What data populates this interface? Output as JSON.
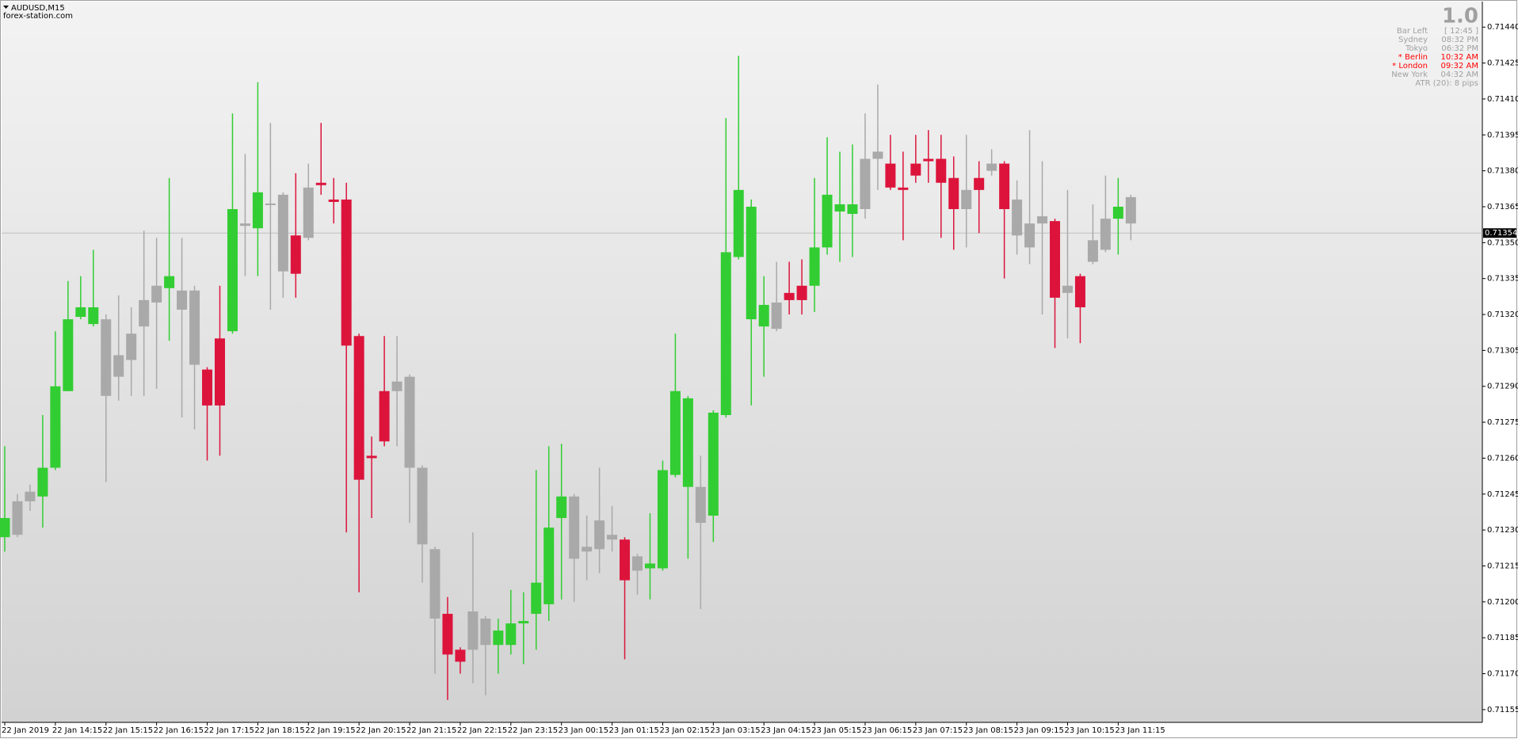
{
  "chart_data": {
    "type": "candlestick",
    "title": "AUDUSD,M15",
    "subtitle": "forex-station.com",
    "ylim": [
      0.7115,
      0.7145
    ],
    "yticks": [
      {
        "value": 0.7144,
        "label": "0.71440"
      },
      0.71425,
      {
        "value": 0.7141,
        "label": "0.71410"
      },
      0.71395,
      {
        "value": 0.7138,
        "label": "0.71380"
      },
      0.71365,
      {
        "value": 0.7135,
        "label": "0.71350"
      },
      0.71335,
      {
        "value": 0.7132,
        "label": "0.71320"
      },
      0.71305,
      {
        "value": 0.7129,
        "label": "0.71290"
      },
      0.71275,
      {
        "value": 0.7126,
        "label": "0.71260"
      },
      0.71245,
      {
        "value": 0.7123,
        "label": "0.71230"
      },
      0.71215,
      {
        "value": 0.712,
        "label": "0.71200"
      },
      0.71185,
      {
        "value": 0.7117,
        "label": "0.71170"
      },
      0.71155
    ],
    "grid": false,
    "price_line": 0.71354,
    "price_line_color": "#c0c0c0",
    "categories": [
      "22 Jan 2019",
      null,
      null,
      null,
      "22 Jan 14:15",
      null,
      null,
      null,
      "22 Jan 15:15",
      null,
      null,
      null,
      "22 Jan 16:15",
      null,
      null,
      null,
      "22 Jan 17:15",
      null,
      null,
      null,
      "22 Jan 18:15",
      null,
      null,
      null,
      "22 Jan 19:15",
      null,
      null,
      null,
      "22 Jan 20:15",
      null,
      null,
      null,
      "22 Jan 21:15",
      null,
      null,
      null,
      "22 Jan 22:15",
      null,
      null,
      null,
      "22 Jan 23:15",
      null,
      null,
      null,
      "23 Jan 00:15",
      null,
      null,
      null,
      "23 Jan 01:15",
      null,
      null,
      null,
      "23 Jan 02:15",
      null,
      null,
      null,
      "23 Jan 03:15",
      null,
      null,
      null,
      "23 Jan 04:15",
      null,
      null,
      null,
      "23 Jan 05:15",
      null,
      null,
      null,
      "23 Jan 06:15",
      null,
      null,
      null,
      "23 Jan 07:15",
      null,
      null,
      null,
      "23 Jan 08:15",
      null,
      null,
      null,
      "23 Jan 09:15",
      null,
      null,
      null,
      "23 Jan 10:15",
      null,
      null,
      null,
      "23 Jan 11:15",
      null
    ],
    "ohlc": [
      [
        0.71227,
        0.71265,
        0.71221,
        0.71235
      ],
      [
        0.71228,
        0.71245,
        0.71227,
        0.71242
      ],
      [
        0.71242,
        0.71249,
        0.71238,
        0.71246
      ],
      [
        0.71244,
        0.71278,
        0.71231,
        0.71256
      ],
      [
        0.71256,
        0.71313,
        0.71255,
        0.7129
      ],
      [
        0.71288,
        0.71334,
        0.71288,
        0.71318
      ],
      [
        0.71319,
        0.71336,
        0.71318,
        0.71323
      ],
      [
        0.71316,
        0.71347,
        0.71315,
        0.71323
      ],
      [
        0.71318,
        0.7132,
        0.7125,
        0.71286
      ],
      [
        0.71294,
        0.71328,
        0.71284,
        0.71303
      ],
      [
        0.71301,
        0.71323,
        0.71286,
        0.71312
      ],
      [
        0.71315,
        0.71355,
        0.71286,
        0.71326
      ],
      [
        0.71325,
        0.71352,
        0.71289,
        0.71332
      ],
      [
        0.71331,
        0.71377,
        0.71309,
        0.71336
      ],
      [
        0.7133,
        0.71352,
        0.71277,
        0.71322
      ],
      [
        0.7133,
        0.71332,
        0.71272,
        0.71299
      ],
      [
        0.71297,
        0.71298,
        0.71259,
        0.71282
      ],
      [
        0.7131,
        0.71332,
        0.71261,
        0.71282
      ],
      [
        0.71313,
        0.71404,
        0.71312,
        0.71364
      ],
      [
        0.71357,
        0.71387,
        0.71336,
        0.71358
      ],
      [
        0.71356,
        0.71417,
        0.71336,
        0.71371
      ],
      [
        0.71366,
        0.714,
        0.71322,
        0.71366
      ],
      [
        0.7137,
        0.71371,
        0.71327,
        0.71338
      ],
      [
        0.71353,
        0.71379,
        0.71327,
        0.71337
      ],
      [
        0.71352,
        0.71383,
        0.71351,
        0.71373
      ],
      [
        0.71375,
        0.714,
        0.7137,
        0.71374
      ],
      [
        0.71368,
        0.71377,
        0.71358,
        0.71367
      ],
      [
        0.71368,
        0.71375,
        0.71229,
        0.71307
      ],
      [
        0.71311,
        0.71312,
        0.71204,
        0.71251
      ],
      [
        0.71261,
        0.71269,
        0.71235,
        0.7126
      ],
      [
        0.71288,
        0.71311,
        0.71265,
        0.71267
      ],
      [
        0.71288,
        0.71311,
        0.71265,
        0.71292
      ],
      [
        0.71294,
        0.71295,
        0.71233,
        0.71256
      ],
      [
        0.71256,
        0.71257,
        0.71208,
        0.71224
      ],
      [
        0.71222,
        0.71223,
        0.7117,
        0.71193
      ],
      [
        0.71195,
        0.71202,
        0.71159,
        0.71178
      ],
      [
        0.7118,
        0.71181,
        0.7117,
        0.71175
      ],
      [
        0.7118,
        0.71229,
        0.71166,
        0.71196
      ],
      [
        0.71193,
        0.71194,
        0.71161,
        0.71182
      ],
      [
        0.71182,
        0.71193,
        0.7117,
        0.71188
      ],
      [
        0.71182,
        0.71205,
        0.71178,
        0.71191
      ],
      [
        0.71191,
        0.71204,
        0.71174,
        0.71192
      ],
      [
        0.71195,
        0.71255,
        0.7118,
        0.71208
      ],
      [
        0.71199,
        0.71265,
        0.71192,
        0.71231
      ],
      [
        0.71235,
        0.71266,
        0.71201,
        0.71244
      ],
      [
        0.71244,
        0.71245,
        0.712,
        0.71218
      ],
      [
        0.71221,
        0.71236,
        0.71209,
        0.71223
      ],
      [
        0.71222,
        0.71256,
        0.71212,
        0.71234
      ],
      [
        0.71228,
        0.7124,
        0.71221,
        0.71226
      ],
      [
        0.71226,
        0.71227,
        0.71176,
        0.71209
      ],
      [
        0.71213,
        0.7122,
        0.71203,
        0.71219
      ],
      [
        0.71214,
        0.71237,
        0.71201,
        0.71216
      ],
      [
        0.71214,
        0.71259,
        0.71213,
        0.71255
      ],
      [
        0.71253,
        0.71312,
        0.71252,
        0.71288
      ],
      [
        0.71248,
        0.71286,
        0.71218,
        0.71285
      ],
      [
        0.71248,
        0.71261,
        0.71197,
        0.71233
      ],
      [
        0.71236,
        0.7128,
        0.71225,
        0.71279
      ],
      [
        0.71278,
        0.71402,
        0.71277,
        0.71346
      ],
      [
        0.71344,
        0.71428,
        0.71343,
        0.71372
      ],
      [
        0.71318,
        0.71368,
        0.71282,
        0.71365
      ],
      [
        0.71315,
        0.71336,
        0.71294,
        0.71324
      ],
      [
        0.71314,
        0.71342,
        0.71313,
        0.71325
      ],
      [
        0.71329,
        0.71342,
        0.7132,
        0.71326
      ],
      [
        0.71332,
        0.71343,
        0.7132,
        0.71326
      ],
      [
        0.71332,
        0.71377,
        0.71321,
        0.71348
      ],
      [
        0.71348,
        0.71394,
        0.71345,
        0.7137
      ],
      [
        0.71363,
        0.71388,
        0.71342,
        0.71366
      ],
      [
        0.71362,
        0.71391,
        0.71344,
        0.71366
      ],
      [
        0.71364,
        0.71404,
        0.7136,
        0.71385
      ],
      [
        0.71385,
        0.71416,
        0.71372,
        0.71388
      ],
      [
        0.71383,
        0.71395,
        0.71372,
        0.71373
      ],
      [
        0.71373,
        0.71388,
        0.71351,
        0.71372
      ],
      [
        0.71383,
        0.71395,
        0.71375,
        0.71378
      ],
      [
        0.71385,
        0.71397,
        0.71375,
        0.71384
      ],
      [
        0.71385,
        0.71395,
        0.71352,
        0.71375
      ],
      [
        0.71377,
        0.71386,
        0.71347,
        0.71364
      ],
      [
        0.71364,
        0.71395,
        0.71348,
        0.71372
      ],
      [
        0.71377,
        0.71384,
        0.71354,
        0.71372
      ],
      [
        0.7138,
        0.71389,
        0.71378,
        0.71383
      ],
      [
        0.71383,
        0.71384,
        0.71335,
        0.71364
      ],
      [
        0.71368,
        0.71376,
        0.71345,
        0.71353
      ],
      [
        0.71358,
        0.71397,
        0.71341,
        0.71348
      ],
      [
        0.71358,
        0.71384,
        0.7132,
        0.71361
      ],
      [
        0.71359,
        0.7136,
        0.71306,
        0.71327
      ],
      [
        0.71329,
        0.71372,
        0.7131,
        0.71332
      ],
      [
        0.71336,
        0.71337,
        0.71308,
        0.71323
      ],
      [
        0.71342,
        0.71366,
        0.71341,
        0.71351
      ],
      [
        0.71347,
        0.71378,
        0.71346,
        0.7136
      ],
      [
        0.7136,
        0.71377,
        0.71345,
        0.71365
      ],
      [
        0.71358,
        0.7137,
        0.71351,
        0.71369
      ]
    ],
    "candle_colors": [
      "#32cd32",
      "#a9a9a9",
      "#a9a9a9",
      "#32cd32",
      "#32cd32",
      "#32cd32",
      "#32cd32",
      "#32cd32",
      "#a9a9a9",
      "#a9a9a9",
      "#a9a9a9",
      "#a9a9a9",
      "#a9a9a9",
      "#32cd32",
      "#a9a9a9",
      "#a9a9a9",
      "#dc143c",
      "#dc143c",
      "#32cd32",
      "#a9a9a9",
      "#32cd32",
      "#a9a9a9",
      "#a9a9a9",
      "#dc143c",
      "#a9a9a9",
      "#dc143c",
      "#dc143c",
      "#dc143c",
      "#dc143c",
      "#dc143c",
      "#dc143c",
      "#a9a9a9",
      "#a9a9a9",
      "#a9a9a9",
      "#a9a9a9",
      "#dc143c",
      "#dc143c",
      "#a9a9a9",
      "#a9a9a9",
      "#32cd32",
      "#32cd32",
      "#32cd32",
      "#32cd32",
      "#32cd32",
      "#32cd32",
      "#a9a9a9",
      "#a9a9a9",
      "#a9a9a9",
      "#a9a9a9",
      "#dc143c",
      "#a9a9a9",
      "#32cd32",
      "#32cd32",
      "#32cd32",
      "#32cd32",
      "#a9a9a9",
      "#32cd32",
      "#32cd32",
      "#32cd32",
      "#32cd32",
      "#32cd32",
      "#a9a9a9",
      "#dc143c",
      "#dc143c",
      "#32cd32",
      "#32cd32",
      "#32cd32",
      "#32cd32",
      "#a9a9a9",
      "#a9a9a9",
      "#dc143c",
      "#dc143c",
      "#dc143c",
      "#dc143c",
      "#dc143c",
      "#dc143c",
      "#a9a9a9",
      "#dc143c",
      "#a9a9a9",
      "#dc143c",
      "#a9a9a9",
      "#a9a9a9",
      "#a9a9a9",
      "#dc143c",
      "#a9a9a9",
      "#dc143c",
      "#a9a9a9",
      "#a9a9a9",
      "#32cd32",
      "#a9a9a9"
    ],
    "info_version": "1.0",
    "info_panel": [
      {
        "label": "Bar Left",
        "value": "[ 12:45 ]",
        "color": "#a0a0a0"
      },
      {
        "label": "Sydney",
        "value": "08:32 PM",
        "color": "#a0a0a0"
      },
      {
        "label": "Tokyo",
        "value": "06:32 PM",
        "color": "#a0a0a0"
      },
      {
        "label": "* Berlin",
        "value": "10:32 AM",
        "color": "#ff0000"
      },
      {
        "label": "* London",
        "value": "09:32 AM",
        "color": "#ff0000"
      },
      {
        "label": "New York",
        "value": "04:32 AM",
        "color": "#a0a0a0"
      }
    ],
    "info_footer": "ATR (20): 8 pips"
  }
}
